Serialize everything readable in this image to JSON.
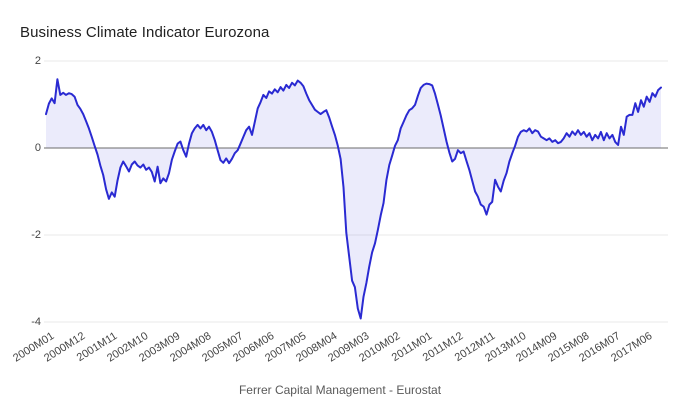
{
  "title": "Business Climate Indicator Eurozona",
  "footer": "Ferrer Capital Management - Eurostat",
  "colors": {
    "background": "#ffffff",
    "line": "#2a2ad2",
    "area_fill": "rgba(54,54,213,0.10)",
    "zero_axis": "#6b6b6b",
    "gridline": "#e9e9e9",
    "title_text": "#212121",
    "tick_text": "#444444",
    "footer_text": "#595959"
  },
  "y_axis": {
    "ticks": [
      2,
      0,
      -2,
      -4
    ],
    "min": -4,
    "max": 2
  },
  "x_axis": {
    "labels": [
      "2000M01",
      "2000M12",
      "2001M11",
      "2002M10",
      "2003M09",
      "2004M08",
      "2005M07",
      "2006M06",
      "2007M05",
      "2008M04",
      "2009M03",
      "2010M02",
      "2011M01",
      "2011M12",
      "2012M11",
      "2013M10",
      "2014M09",
      "2015M08",
      "2016M07",
      "2017M06"
    ],
    "months_between_labels": 11
  },
  "chart_data": {
    "type": "area",
    "title": "Business Climate Indicator Eurozona",
    "x_start": "2000M01",
    "x_end": "2017M12",
    "x_frequency": "monthly",
    "ylim": [
      -4,
      2
    ],
    "grid": true,
    "legend": "none",
    "values": [
      0.78,
      1.02,
      1.14,
      1.03,
      1.58,
      1.22,
      1.27,
      1.22,
      1.26,
      1.24,
      1.18,
      0.99,
      0.9,
      0.78,
      0.62,
      0.45,
      0.25,
      0.05,
      -0.15,
      -0.4,
      -0.62,
      -0.95,
      -1.17,
      -1.02,
      -1.12,
      -0.75,
      -0.45,
      -0.31,
      -0.42,
      -0.54,
      -0.38,
      -0.31,
      -0.4,
      -0.45,
      -0.38,
      -0.5,
      -0.45,
      -0.55,
      -0.77,
      -0.43,
      -0.81,
      -0.7,
      -0.77,
      -0.58,
      -0.27,
      -0.08,
      0.1,
      0.15,
      -0.05,
      -0.2,
      0.1,
      0.34,
      0.45,
      0.53,
      0.45,
      0.53,
      0.41,
      0.49,
      0.37,
      0.18,
      -0.05,
      -0.28,
      -0.34,
      -0.24,
      -0.35,
      -0.25,
      -0.12,
      -0.05,
      0.1,
      0.26,
      0.41,
      0.49,
      0.3,
      0.6,
      0.91,
      1.05,
      1.22,
      1.15,
      1.3,
      1.25,
      1.35,
      1.28,
      1.4,
      1.32,
      1.45,
      1.38,
      1.5,
      1.44,
      1.55,
      1.5,
      1.42,
      1.25,
      1.1,
      0.99,
      0.88,
      0.83,
      0.78,
      0.83,
      0.87,
      0.7,
      0.5,
      0.3,
      0.05,
      -0.25,
      -0.9,
      -1.95,
      -2.5,
      -3.05,
      -3.2,
      -3.69,
      -3.92,
      -3.42,
      -3.1,
      -2.73,
      -2.4,
      -2.19,
      -1.89,
      -1.55,
      -1.27,
      -0.74,
      -0.39,
      -0.18,
      0.05,
      0.18,
      0.45,
      0.6,
      0.75,
      0.87,
      0.91,
      0.99,
      1.2,
      1.38,
      1.45,
      1.48,
      1.47,
      1.44,
      1.25,
      1.0,
      0.75,
      0.45,
      0.15,
      -0.1,
      -0.31,
      -0.25,
      -0.05,
      -0.12,
      -0.08,
      -0.3,
      -0.5,
      -0.75,
      -1.0,
      -1.12,
      -1.3,
      -1.35,
      -1.53,
      -1.3,
      -1.24,
      -0.73,
      -0.89,
      -1.0,
      -0.75,
      -0.58,
      -0.31,
      -0.12,
      0.05,
      0.26,
      0.37,
      0.41,
      0.38,
      0.45,
      0.34,
      0.41,
      0.38,
      0.26,
      0.22,
      0.18,
      0.22,
      0.14,
      0.18,
      0.11,
      0.14,
      0.22,
      0.34,
      0.26,
      0.38,
      0.3,
      0.41,
      0.3,
      0.37,
      0.26,
      0.34,
      0.18,
      0.3,
      0.22,
      0.37,
      0.18,
      0.34,
      0.22,
      0.3,
      0.14,
      0.07,
      0.49,
      0.3,
      0.72,
      0.76,
      0.76,
      1.03,
      0.83,
      1.1,
      0.95,
      1.18,
      1.06,
      1.26,
      1.18,
      1.33,
      1.39
    ]
  }
}
